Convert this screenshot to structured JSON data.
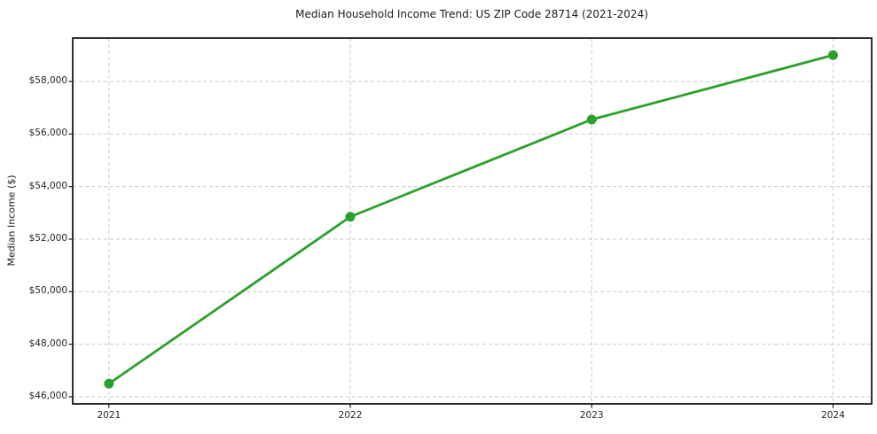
{
  "chart_data": {
    "type": "line",
    "title": "Median Household Income Trend: US ZIP Code 28714 (2021-2024)",
    "xlabel": "",
    "ylabel": "Median Income ($)",
    "x": [
      2021,
      2022,
      2023,
      2024
    ],
    "series": [
      {
        "name": "Median Household Income",
        "values": [
          46500,
          52850,
          56550,
          59000
        ]
      }
    ],
    "xticks": [
      2021,
      2022,
      2023,
      2024
    ],
    "xtick_labels": [
      "2021",
      "2022",
      "2023",
      "2024"
    ],
    "yticks": [
      46000,
      48000,
      50000,
      52000,
      54000,
      56000,
      58000
    ],
    "ytick_labels": [
      "$46,000",
      "$48,000",
      "$50,000",
      "$52,000",
      "$54,000",
      "$56,000",
      "$58,000"
    ],
    "xlim": [
      2020.85,
      2024.16
    ],
    "ylim": [
      45730,
      59650
    ],
    "grid": true,
    "legend": "none",
    "marker": "circle",
    "colors": {
      "series": "#2ca02c",
      "grid": "#c9c9c9",
      "axis": "#1a1a1a",
      "tick_text": "#262626"
    }
  }
}
